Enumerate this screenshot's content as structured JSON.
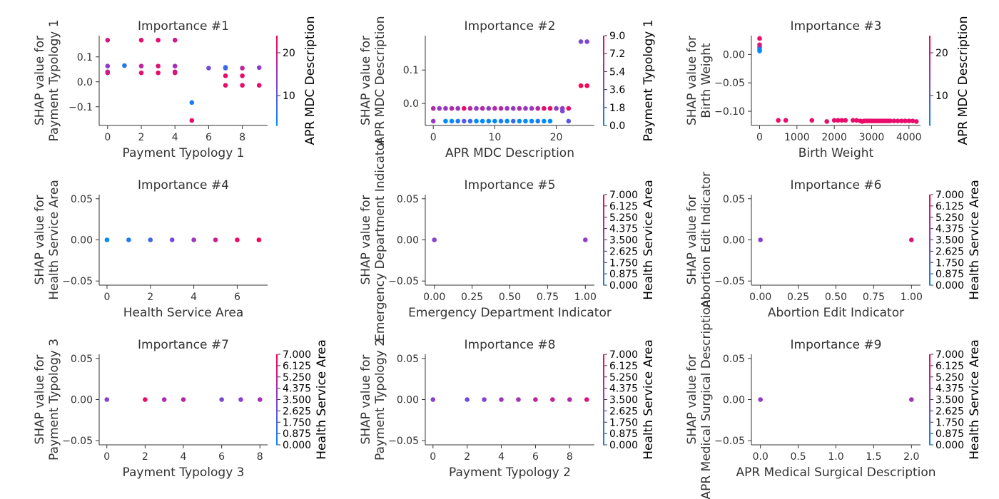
{
  "colors": {
    "low": "#008afb",
    "mid": "#8a3fd0",
    "high": "#ff0052"
  },
  "chart_data": [
    {
      "type": "scatter",
      "title": "Importance #1",
      "xlabel": "Payment Typology 1",
      "ylabel": [
        "SHAP value for",
        "Payment Typology 1"
      ],
      "xlim": [
        -0.5,
        9.5
      ],
      "ylim": [
        -0.175,
        0.185
      ],
      "xticks": [
        0,
        2,
        4,
        6,
        8
      ],
      "xtick_labels": [
        "0",
        "2",
        "4",
        "6",
        "8"
      ],
      "yticks": [
        -0.1,
        0.0,
        0.1
      ],
      "ytick_labels": [
        "−0.1",
        "0.0",
        "0.1"
      ],
      "colorbar": {
        "label": "APR MDC Description",
        "range": [
          3,
          24
        ],
        "ticks": [
          10,
          20
        ],
        "tick_labels": [
          "10",
          "20"
        ]
      },
      "points": [
        [
          0,
          0.167,
          20
        ],
        [
          0,
          0.063,
          14
        ],
        [
          0,
          0.036,
          22
        ],
        [
          0,
          0.04,
          19
        ],
        [
          1,
          0.065,
          6
        ],
        [
          2,
          0.167,
          22
        ],
        [
          2,
          0.063,
          18
        ],
        [
          2,
          0.036,
          22
        ],
        [
          3,
          0.167,
          22
        ],
        [
          3,
          0.063,
          21
        ],
        [
          3,
          0.036,
          22
        ],
        [
          4,
          0.167,
          22
        ],
        [
          4,
          0.167,
          19
        ],
        [
          4,
          0.063,
          16
        ],
        [
          4,
          0.036,
          22
        ],
        [
          4,
          0.04,
          20
        ],
        [
          5,
          -0.083,
          5
        ],
        [
          5,
          -0.155,
          22
        ],
        [
          6,
          0.055,
          12
        ],
        [
          7,
          0.058,
          5
        ],
        [
          7,
          0.055,
          8
        ],
        [
          7,
          0.024,
          22
        ],
        [
          7,
          -0.014,
          22
        ],
        [
          8,
          0.055,
          18
        ],
        [
          8,
          0.024,
          22
        ],
        [
          8,
          -0.014,
          22
        ],
        [
          9,
          0.057,
          14
        ],
        [
          9,
          -0.014,
          22
        ]
      ]
    },
    {
      "type": "scatter",
      "title": "Importance #2",
      "xlabel": "APR MDC Description",
      "ylabel": [
        "SHAP value for",
        "APR MDC Description"
      ],
      "xlim": [
        -1.3,
        26.2
      ],
      "ylim": [
        -0.066,
        0.203
      ],
      "xticks": [
        0,
        10,
        20
      ],
      "xtick_labels": [
        "0",
        "10",
        "20"
      ],
      "yticks": [
        0.0,
        0.1
      ],
      "ytick_labels": [
        "0.0",
        "0.1"
      ],
      "colorbar": {
        "label": "Payment Typology 1",
        "range": [
          0,
          9
        ],
        "ticks": [
          0,
          1.8,
          3.6,
          5.4,
          7.2,
          9.0
        ],
        "tick_labels": [
          "0.0",
          "1.8",
          "3.6",
          "5.4",
          "7.2",
          "9.0"
        ]
      },
      "points": [
        [
          0,
          -0.015,
          6
        ],
        [
          0,
          -0.053,
          5
        ],
        [
          1,
          -0.015,
          5
        ],
        [
          2,
          -0.015,
          5
        ],
        [
          2,
          -0.053,
          0
        ],
        [
          3,
          -0.015,
          6
        ],
        [
          3,
          -0.053,
          0
        ],
        [
          4,
          -0.015,
          5
        ],
        [
          4,
          -0.053,
          1
        ],
        [
          5,
          -0.015,
          8
        ],
        [
          5,
          -0.053,
          3
        ],
        [
          6,
          -0.015,
          6
        ],
        [
          6,
          -0.053,
          2
        ],
        [
          7,
          -0.015,
          5
        ],
        [
          7,
          -0.053,
          0
        ],
        [
          8,
          -0.015,
          6
        ],
        [
          8,
          -0.053,
          0
        ],
        [
          9,
          -0.015,
          5
        ],
        [
          9,
          -0.053,
          0
        ],
        [
          10,
          -0.015,
          6
        ],
        [
          10,
          -0.053,
          0
        ],
        [
          11,
          -0.015,
          6
        ],
        [
          11,
          -0.053,
          1
        ],
        [
          12,
          -0.015,
          5
        ],
        [
          12,
          -0.053,
          0
        ],
        [
          13,
          -0.015,
          5
        ],
        [
          13,
          -0.053,
          2
        ],
        [
          14,
          -0.015,
          6
        ],
        [
          14,
          -0.053,
          0
        ],
        [
          15,
          -0.015,
          5
        ],
        [
          15,
          -0.053,
          0
        ],
        [
          16,
          -0.015,
          5
        ],
        [
          16,
          -0.053,
          0
        ],
        [
          17,
          -0.015,
          6
        ],
        [
          17,
          -0.053,
          1
        ],
        [
          18,
          -0.015,
          8
        ],
        [
          18,
          -0.053,
          0
        ],
        [
          19,
          -0.015,
          8
        ],
        [
          19,
          -0.053,
          0
        ],
        [
          20,
          -0.015,
          5
        ],
        [
          21,
          -0.015,
          5
        ],
        [
          21,
          -0.023,
          4
        ],
        [
          22,
          -0.015,
          8
        ],
        [
          22,
          -0.053,
          3
        ],
        [
          24,
          0.185,
          4
        ],
        [
          24,
          0.053,
          9
        ],
        [
          25,
          0.185,
          4
        ],
        [
          25,
          0.053,
          9
        ]
      ]
    },
    {
      "type": "scatter",
      "title": "Importance #3",
      "xlabel": "Birth Weight",
      "ylabel": [
        "SHAP value for",
        "Birth Weight"
      ],
      "xlim": [
        -220,
        4310
      ],
      "ylim": [
        -0.125,
        0.033
      ],
      "xticks": [
        0,
        1000,
        2000,
        3000,
        4000
      ],
      "xtick_labels": [
        "0",
        "1000",
        "2000",
        "3000",
        "4000"
      ],
      "yticks": [
        -0.1,
        -0.05,
        0.0
      ],
      "ytick_labels": [
        "−0.10",
        "−0.05",
        "0.00"
      ],
      "colorbar": {
        "label": "APR MDC Description",
        "range": [
          3,
          24
        ],
        "ticks": [
          10,
          20
        ],
        "tick_labels": [
          "10",
          "20"
        ]
      },
      "points": [
        [
          0,
          0.028,
          22
        ],
        [
          0,
          0.017,
          21
        ],
        [
          0,
          0.013,
          19
        ],
        [
          0,
          0.009,
          5
        ],
        [
          0,
          0.006,
          3
        ],
        [
          500,
          -0.116,
          22
        ],
        [
          700,
          -0.116,
          22
        ],
        [
          1400,
          -0.116,
          22
        ],
        [
          1800,
          -0.118,
          22
        ],
        [
          2000,
          -0.116,
          22
        ],
        [
          2100,
          -0.116,
          22
        ],
        [
          2200,
          -0.116,
          22
        ],
        [
          2300,
          -0.116,
          22
        ],
        [
          2500,
          -0.116,
          22
        ],
        [
          2600,
          -0.116,
          22
        ],
        [
          2700,
          -0.117,
          22
        ],
        [
          2750,
          -0.118,
          22
        ],
        [
          2800,
          -0.117,
          22
        ],
        [
          2850,
          -0.117,
          22
        ],
        [
          2900,
          -0.117,
          22
        ],
        [
          2950,
          -0.117,
          22
        ],
        [
          3000,
          -0.117,
          22
        ],
        [
          3050,
          -0.117,
          22
        ],
        [
          3100,
          -0.117,
          22
        ],
        [
          3150,
          -0.117,
          22
        ],
        [
          3200,
          -0.117,
          22
        ],
        [
          3250,
          -0.117,
          22
        ],
        [
          3300,
          -0.117,
          22
        ],
        [
          3350,
          -0.117,
          22
        ],
        [
          3400,
          -0.117,
          22
        ],
        [
          3450,
          -0.117,
          22
        ],
        [
          3500,
          -0.117,
          22
        ],
        [
          3600,
          -0.117,
          22
        ],
        [
          3700,
          -0.117,
          22
        ],
        [
          3800,
          -0.117,
          22
        ],
        [
          3900,
          -0.117,
          22
        ],
        [
          4000,
          -0.117,
          22
        ],
        [
          4100,
          -0.117,
          22
        ],
        [
          4200,
          -0.118,
          22
        ]
      ]
    },
    {
      "type": "scatter",
      "title": "Importance #4",
      "xlabel": "Health Service Area",
      "ylabel": [
        "SHAP value for",
        "Health Service Area"
      ],
      "xlim": [
        -0.36,
        7.4
      ],
      "ylim": [
        -0.055,
        0.055
      ],
      "xticks": [
        0,
        2,
        4,
        6
      ],
      "xtick_labels": [
        "0",
        "2",
        "4",
        "6"
      ],
      "yticks": [
        -0.05,
        0.0,
        0.05
      ],
      "ytick_labels": [
        "−0.05",
        "0.00",
        "0.05"
      ],
      "colorbar": null,
      "points": [
        [
          0,
          0,
          0.0
        ],
        [
          1,
          0,
          0.1
        ],
        [
          2,
          0,
          0.25
        ],
        [
          3,
          0,
          0.42
        ],
        [
          4,
          0,
          0.58
        ],
        [
          5,
          0,
          0.75
        ],
        [
          6,
          0,
          0.92
        ],
        [
          7,
          0,
          1.0
        ]
      ]
    },
    {
      "type": "scatter",
      "title": "Importance #5",
      "xlabel": "Emergency Department Indicator",
      "ylabel": [
        "SHAP value for",
        "Emergency Department Indicator"
      ],
      "xlim": [
        -0.06,
        1.06
      ],
      "ylim": [
        -0.055,
        0.055
      ],
      "xticks": [
        0.0,
        0.25,
        0.5,
        0.75,
        1.0
      ],
      "xtick_labels": [
        "0.00",
        "0.25",
        "0.50",
        "0.75",
        "1.00"
      ],
      "yticks": [
        -0.05,
        0.0,
        0.05
      ],
      "ytick_labels": [
        "−0.05",
        "0.00",
        "0.05"
      ],
      "colorbar": {
        "label": "Health Service Area",
        "range": [
          0,
          7
        ],
        "ticks": [
          0,
          0.875,
          1.75,
          2.625,
          3.5,
          4.375,
          5.25,
          6.125,
          7.0
        ],
        "tick_labels": [
          "0.000",
          "0.875",
          "1.750",
          "2.625",
          "3.500",
          "4.375",
          "5.250",
          "6.125",
          "7.000"
        ]
      },
      "points": [
        [
          0,
          0,
          3.5
        ],
        [
          1,
          0,
          3.8
        ]
      ]
    },
    {
      "type": "scatter",
      "title": "Importance #6",
      "xlabel": "Abortion Edit Indicator",
      "ylabel": [
        "SHAP value for",
        "Abortion Edit Indicator"
      ],
      "xlim": [
        -0.06,
        1.06
      ],
      "ylim": [
        -0.055,
        0.055
      ],
      "xticks": [
        0.0,
        0.25,
        0.5,
        0.75,
        1.0
      ],
      "xtick_labels": [
        "0.00",
        "0.25",
        "0.50",
        "0.75",
        "1.00"
      ],
      "yticks": [
        -0.05,
        0.0,
        0.05
      ],
      "ytick_labels": [
        "−0.05",
        "0.00",
        "0.05"
      ],
      "colorbar": {
        "label": "Health Service Area",
        "range": [
          0,
          7
        ],
        "ticks": [
          0,
          0.875,
          1.75,
          2.625,
          3.5,
          4.375,
          5.25,
          6.125,
          7.0
        ],
        "tick_labels": [
          "0.000",
          "0.875",
          "1.750",
          "2.625",
          "3.500",
          "4.375",
          "5.250",
          "6.125",
          "7.000"
        ]
      },
      "points": [
        [
          0,
          0,
          3.5
        ],
        [
          1,
          0,
          6.0
        ]
      ]
    },
    {
      "type": "scatter",
      "title": "Importance #7",
      "xlabel": "Payment Typology 3",
      "ylabel": [
        "SHAP value for",
        "Payment Typology 3"
      ],
      "xlim": [
        -0.4,
        8.4
      ],
      "ylim": [
        -0.055,
        0.055
      ],
      "xticks": [
        0,
        2,
        4,
        6,
        8
      ],
      "xtick_labels": [
        "0",
        "2",
        "4",
        "6",
        "8"
      ],
      "yticks": [
        -0.05,
        0.0,
        0.05
      ],
      "ytick_labels": [
        "−0.05",
        "0.00",
        "0.05"
      ],
      "colorbar": {
        "label": "Health Service Area",
        "range": [
          0,
          7
        ],
        "ticks": [
          0,
          0.875,
          1.75,
          2.625,
          3.5,
          4.375,
          5.25,
          6.125,
          7.0
        ],
        "tick_labels": [
          "0.000",
          "0.875",
          "1.750",
          "2.625",
          "3.500",
          "4.375",
          "5.250",
          "6.125",
          "7.000"
        ]
      },
      "points": [
        [
          0,
          0,
          3.5
        ],
        [
          2,
          0,
          6.5
        ],
        [
          3,
          0,
          4.5
        ],
        [
          4,
          0,
          4.8
        ],
        [
          6,
          0,
          3.0
        ],
        [
          7,
          0,
          3.5
        ],
        [
          8,
          0,
          4.2
        ]
      ]
    },
    {
      "type": "scatter",
      "title": "Importance #8",
      "xlabel": "Payment Typology 2",
      "ylabel": [
        "SHAP value for",
        "Payment Typology 2"
      ],
      "xlim": [
        -0.45,
        9.45
      ],
      "ylim": [
        -0.055,
        0.055
      ],
      "xticks": [
        0,
        2,
        4,
        6,
        8
      ],
      "xtick_labels": [
        "0",
        "2",
        "4",
        "6",
        "8"
      ],
      "yticks": [
        -0.05,
        0.0,
        0.05
      ],
      "ytick_labels": [
        "−0.05",
        "0.00",
        "0.05"
      ],
      "colorbar": {
        "label": "Health Service Area",
        "range": [
          0,
          7
        ],
        "ticks": [
          0,
          0.875,
          1.75,
          2.625,
          3.5,
          4.375,
          5.25,
          6.125,
          7.0
        ],
        "tick_labels": [
          "0.000",
          "0.875",
          "1.750",
          "2.625",
          "3.500",
          "4.375",
          "5.250",
          "6.125",
          "7.000"
        ]
      },
      "points": [
        [
          0,
          0,
          3.5
        ],
        [
          2,
          0,
          2.8
        ],
        [
          3,
          0,
          3.4
        ],
        [
          4,
          0,
          4.0
        ],
        [
          5,
          0,
          4.2
        ],
        [
          6,
          0,
          5.0
        ],
        [
          7,
          0,
          5.2
        ],
        [
          8,
          0,
          4.6
        ],
        [
          9,
          0,
          6.0
        ]
      ]
    },
    {
      "type": "scatter",
      "title": "Importance #9",
      "xlabel": "APR Medical Surgical Description",
      "ylabel": [
        "SHAP value for",
        "APR Medical Surgical Description"
      ],
      "xlim": [
        -0.12,
        2.12
      ],
      "ylim": [
        -0.055,
        0.055
      ],
      "xticks": [
        0.0,
        0.5,
        1.0,
        1.5,
        2.0
      ],
      "xtick_labels": [
        "0.0",
        "0.5",
        "1.0",
        "1.5",
        "2.0"
      ],
      "yticks": [
        -0.05,
        0.0,
        0.05
      ],
      "ytick_labels": [
        "−0.05",
        "0.00",
        "0.05"
      ],
      "colorbar": {
        "label": "Health Service Area",
        "range": [
          0,
          7
        ],
        "ticks": [
          0,
          0.875,
          1.75,
          2.625,
          3.5,
          4.375,
          5.25,
          6.125,
          7.0
        ],
        "tick_labels": [
          "0.000",
          "0.875",
          "1.750",
          "2.625",
          "3.500",
          "4.375",
          "5.250",
          "6.125",
          "7.000"
        ]
      },
      "points": [
        [
          0,
          0,
          3.8
        ],
        [
          2,
          0,
          4.2
        ]
      ]
    }
  ]
}
